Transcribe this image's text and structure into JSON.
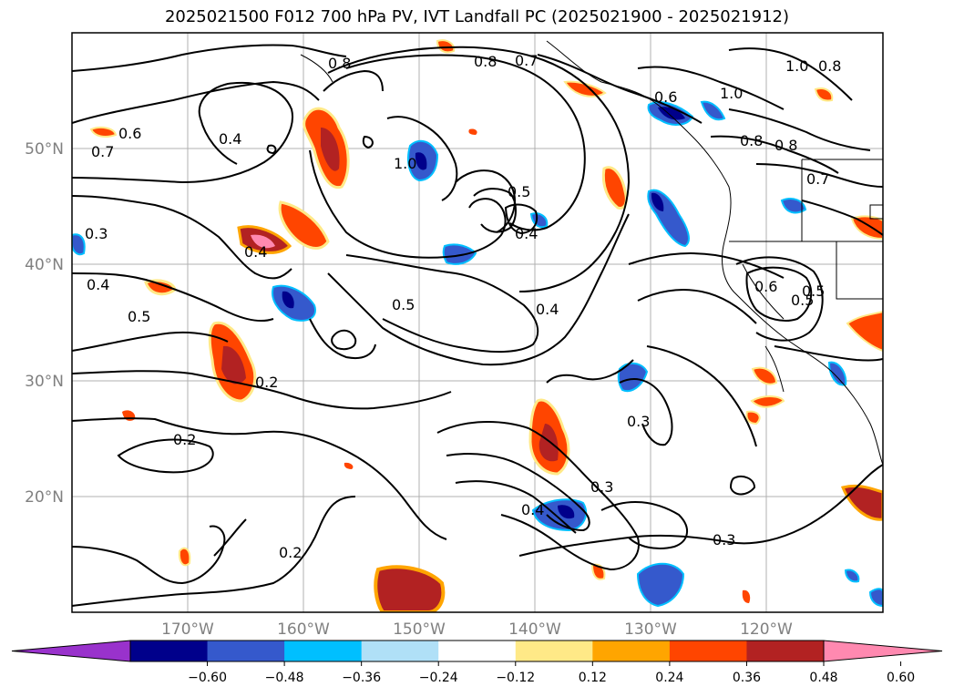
{
  "title": "2025021500 F012 700 hPa PV, IVT Landfall PC (2025021900 - 2025021912)",
  "lat_labels": [
    "50°N",
    "40°N",
    "30°N",
    "20°N"
  ],
  "lon_labels": [
    "170°W",
    "160°W",
    "150°W",
    "140°W",
    "130°W",
    "120°W"
  ],
  "contour_labels": [
    "0.8",
    "0.7",
    "0.8",
    "1.0",
    "0.8",
    "1.0",
    "0.6",
    "0.8",
    "0.8",
    "0.7",
    "0.6",
    "0.7",
    "0.4",
    "0.4",
    "0.5",
    "0.5",
    "0.4",
    "0.3",
    "0.4",
    "0.5",
    "0.5",
    "0.4",
    "0.2",
    "0.2",
    "0.3",
    "0.3",
    "0.2",
    "0.4",
    "0.3",
    "0.6",
    "0.5",
    "1.0"
  ],
  "colorbar": {
    "ticks": [
      "−0.60",
      "−0.48",
      "−0.36",
      "−0.24",
      "−0.12",
      "0.12",
      "0.24",
      "0.36",
      "0.48",
      "0.60"
    ],
    "colors": [
      "#9932cc",
      "#00008b",
      "#3559cc",
      "#00bfff",
      "#b0e0f7",
      "#ffffff",
      "#ffe987",
      "#ffa500",
      "#ff4500",
      "#b22222",
      "#ff89b0"
    ]
  }
}
